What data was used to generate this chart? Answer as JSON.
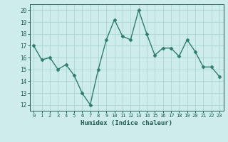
{
  "x": [
    0,
    1,
    2,
    3,
    4,
    5,
    6,
    7,
    8,
    9,
    10,
    11,
    12,
    13,
    14,
    15,
    16,
    17,
    18,
    19,
    20,
    21,
    22,
    23
  ],
  "y": [
    17,
    15.8,
    16.0,
    15.0,
    15.4,
    14.5,
    13.0,
    12.0,
    15.0,
    17.5,
    19.2,
    17.8,
    17.5,
    20.0,
    18.0,
    16.2,
    16.8,
    16.8,
    16.1,
    17.5,
    16.5,
    15.2,
    15.2,
    14.4
  ],
  "line_color": "#2e7d6e",
  "marker": "D",
  "markersize": 2.5,
  "linewidth": 1.0,
  "bg_color": "#cdecea",
  "grid_color": "#aed6d2",
  "xlabel": "Humidex (Indice chaleur)",
  "xlim": [
    -0.5,
    23.5
  ],
  "ylim": [
    11.5,
    20.5
  ],
  "yticks": [
    12,
    13,
    14,
    15,
    16,
    17,
    18,
    19,
    20
  ],
  "xticks": [
    0,
    1,
    2,
    3,
    4,
    5,
    6,
    7,
    8,
    9,
    10,
    11,
    12,
    13,
    14,
    15,
    16,
    17,
    18,
    19,
    20,
    21,
    22,
    23
  ],
  "tick_color": "#1e5c52",
  "label_color": "#1e5c52",
  "axis_color": "#1e5c52"
}
